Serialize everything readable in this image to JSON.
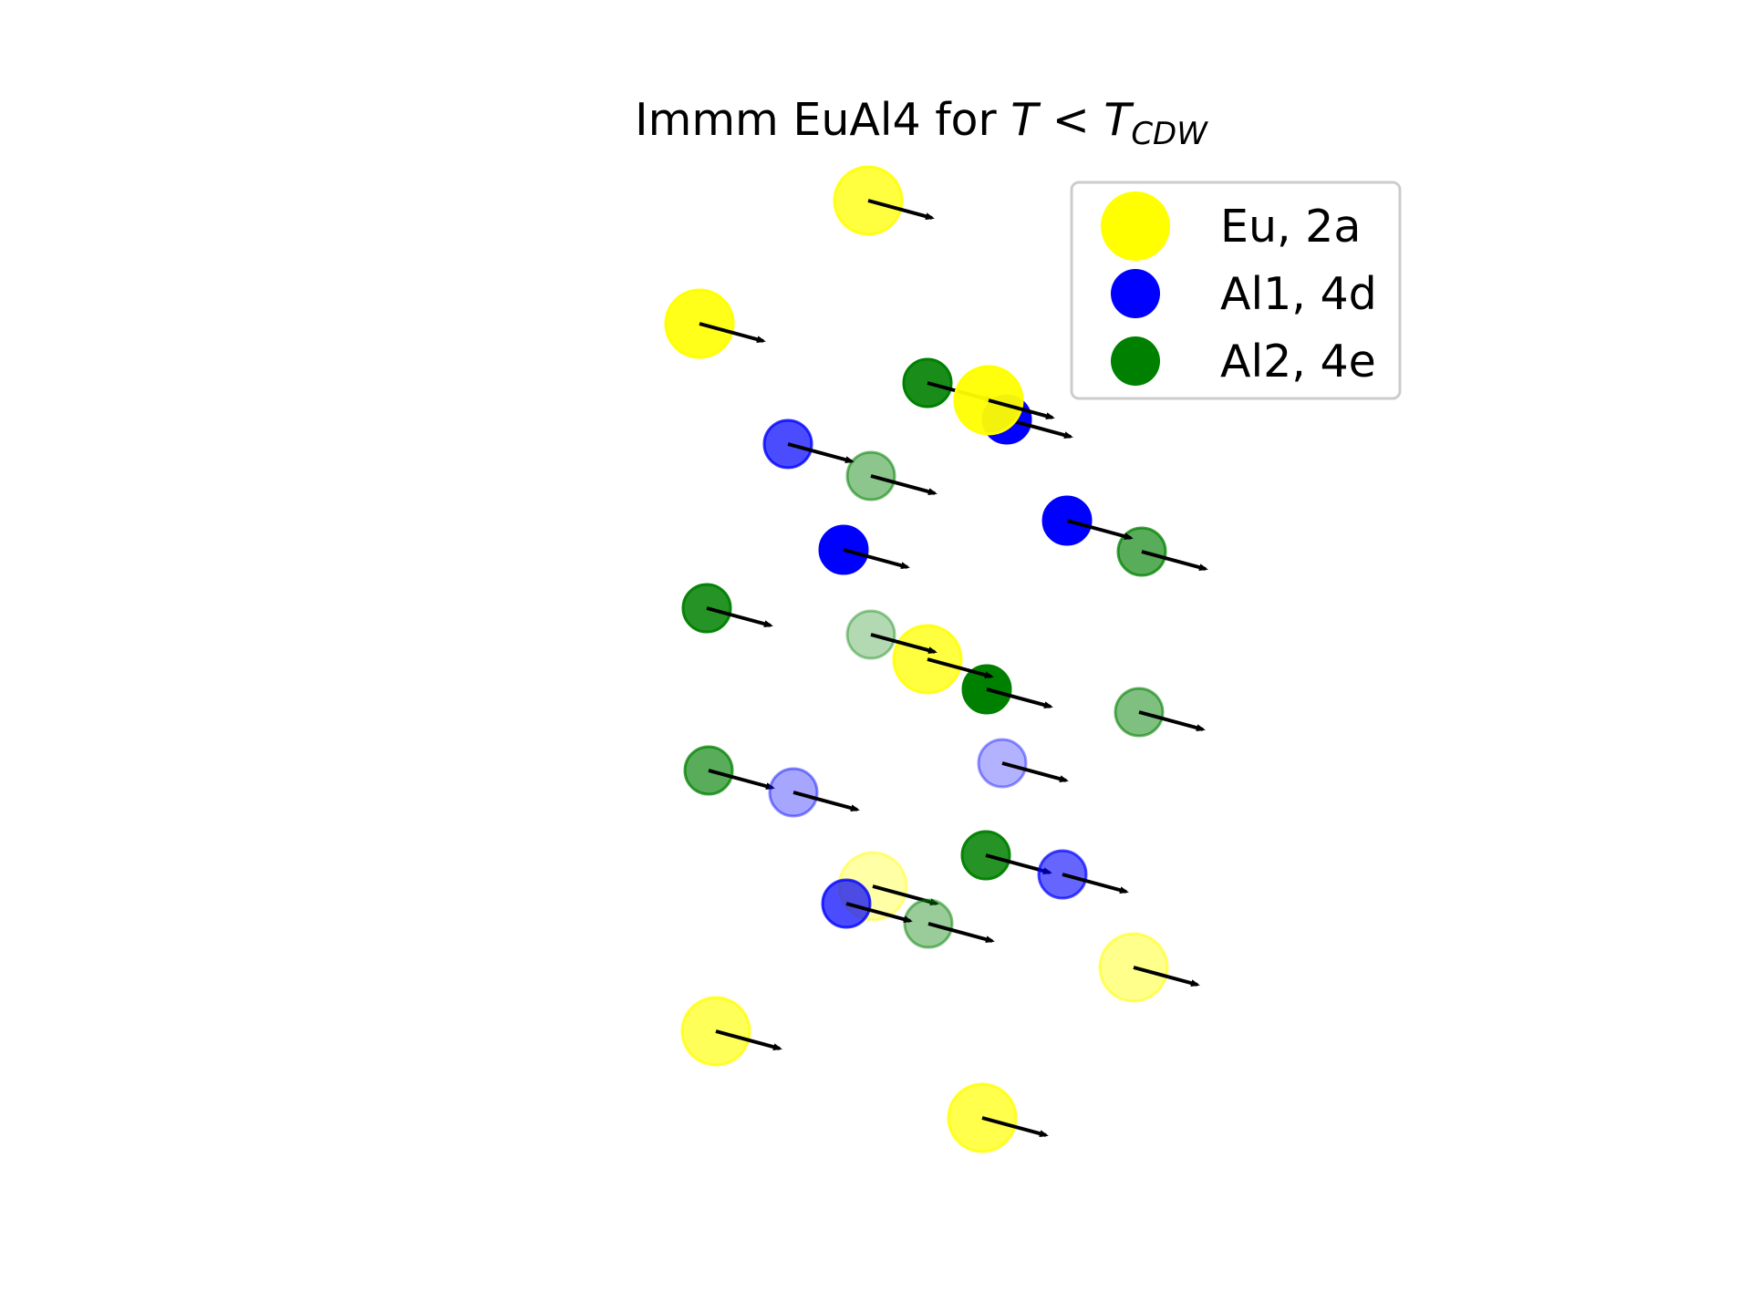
{
  "chart_data": {
    "type": "scatter",
    "title": {
      "prefix": "Immm EuAl4 for ",
      "var": "T",
      "relation": " < ",
      "sub_base": "T",
      "subscript": "CDW"
    },
    "legend": {
      "placement": "top-right",
      "entries": [
        {
          "label": "Eu, 2a",
          "color": "#ffff00",
          "size": "large"
        },
        {
          "label": "Al1, 4d",
          "color": "#0000ff",
          "size": "small"
        },
        {
          "label": "Al2, 4e",
          "color": "#008000",
          "size": "small"
        }
      ]
    },
    "series_colors": {
      "Eu": "#ffff00",
      "Al1": "#0000ff",
      "Al2": "#008000"
    },
    "displacement_arrow_color": "#000000",
    "axes_visible": false
  }
}
